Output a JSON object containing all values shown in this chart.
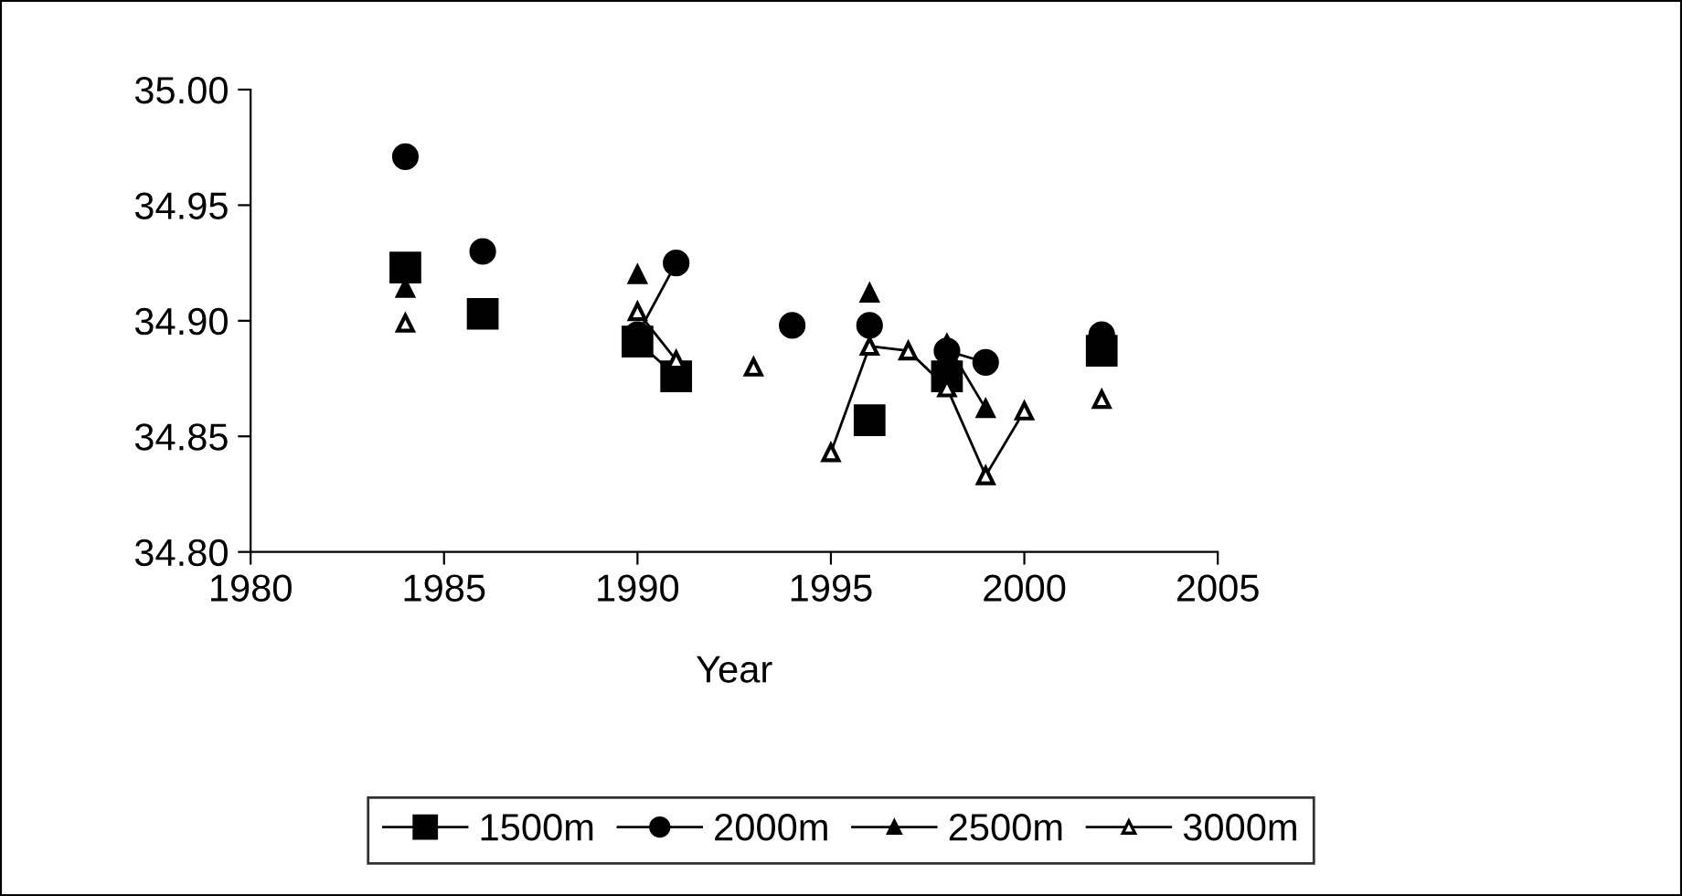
{
  "chart_data": {
    "type": "line",
    "xlabel": "Year",
    "x": [
      1984,
      1985,
      1986,
      1987,
      1988,
      1989,
      1990,
      1991,
      1992,
      1993,
      1994,
      1995,
      1996,
      1997,
      1998,
      1999,
      2000,
      2001,
      2002
    ],
    "series": [
      {
        "name": "1500m",
        "color": "#000000",
        "marker": "square",
        "values": [
          34.923,
          null,
          34.903,
          null,
          null,
          null,
          34.891,
          34.876,
          null,
          null,
          null,
          null,
          34.857,
          null,
          34.876,
          null,
          null,
          null,
          34.887
        ]
      },
      {
        "name": "2000m",
        "color": "#000000",
        "marker": "circle",
        "values": [
          34.971,
          null,
          34.93,
          null,
          null,
          null,
          34.894,
          34.925,
          null,
          null,
          34.898,
          null,
          34.898,
          null,
          34.887,
          34.882,
          null,
          null,
          34.894
        ]
      },
      {
        "name": "2500m",
        "color": "#000000",
        "marker": "triangle",
        "values": [
          34.914,
          null,
          null,
          null,
          null,
          null,
          34.92,
          null,
          null,
          null,
          null,
          null,
          34.912,
          null,
          34.89,
          34.862,
          null,
          null,
          null
        ]
      },
      {
        "name": "3000m",
        "color": "#000000",
        "marker": "triangle",
        "values": [
          34.899,
          null,
          null,
          null,
          null,
          null,
          34.904,
          34.883,
          null,
          34.88,
          null,
          34.843,
          34.889,
          34.887,
          34.871,
          34.833,
          34.861,
          null,
          34.866
        ]
      }
    ],
    "xlim": [
      1980,
      2005
    ],
    "xticks": [
      1980,
      1985,
      1990,
      1995,
      2000,
      2005
    ],
    "ylim": [
      34.8,
      35.0
    ],
    "yticks": [
      {
        "value": 34.8,
        "label": "34.80"
      },
      {
        "value": 34.85,
        "label": "34.85"
      },
      {
        "value": 34.9,
        "label": "34.90"
      },
      {
        "value": 34.95,
        "label": "34.95"
      },
      {
        "value": 35.0,
        "label": "35.00"
      }
    ],
    "grid": false,
    "legend": "bottom",
    "line_style": "solid"
  }
}
